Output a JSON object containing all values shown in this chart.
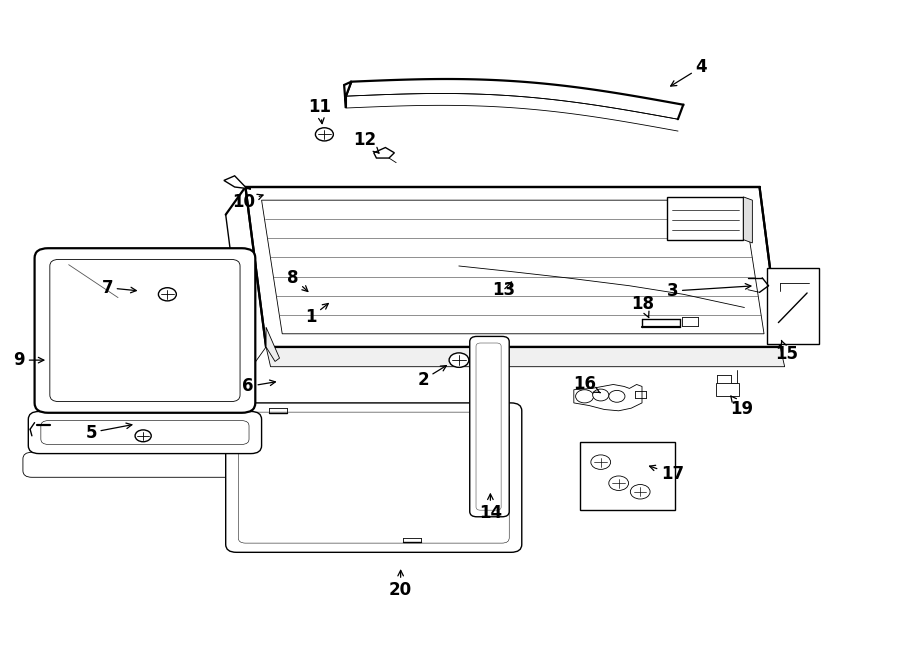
{
  "bg_color": "#ffffff",
  "fig_width": 9.0,
  "fig_height": 6.61,
  "dpi": 100,
  "lw_thick": 1.6,
  "lw_med": 1.0,
  "lw_thin": 0.6,
  "label_fontsize": 12,
  "parts_labels": {
    "1": [
      0.355,
      0.52,
      0.37,
      0.545
    ],
    "2": [
      0.49,
      0.43,
      0.51,
      0.452
    ],
    "3": [
      0.755,
      0.565,
      0.77,
      0.555
    ],
    "4": [
      0.78,
      0.9,
      0.748,
      0.87
    ],
    "5": [
      0.108,
      0.348,
      0.148,
      0.36
    ],
    "6": [
      0.285,
      0.418,
      0.315,
      0.425
    ],
    "7": [
      0.13,
      0.562,
      0.165,
      0.558
    ],
    "8": [
      0.33,
      0.572,
      0.345,
      0.548
    ],
    "9": [
      0.022,
      0.455,
      0.06,
      0.455
    ],
    "10": [
      0.278,
      0.695,
      0.308,
      0.7
    ],
    "11": [
      0.36,
      0.835,
      0.36,
      0.805
    ],
    "12": [
      0.415,
      0.785,
      0.43,
      0.762
    ],
    "13": [
      0.568,
      0.562,
      0.56,
      0.578
    ],
    "14": [
      0.548,
      0.228,
      0.548,
      0.26
    ],
    "15": [
      0.874,
      0.468,
      0.868,
      0.488
    ],
    "16": [
      0.658,
      0.418,
      0.673,
      0.405
    ],
    "17": [
      0.748,
      0.285,
      0.718,
      0.298
    ],
    "18": [
      0.72,
      0.535,
      0.718,
      0.515
    ],
    "19": [
      0.822,
      0.382,
      0.812,
      0.402
    ],
    "20": [
      0.448,
      0.108,
      0.448,
      0.14
    ]
  }
}
